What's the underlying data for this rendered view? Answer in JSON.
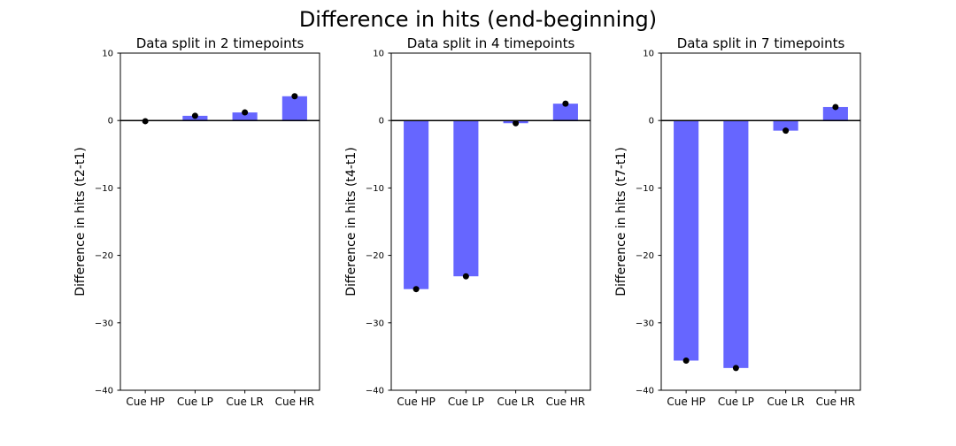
{
  "figure": {
    "title": "Difference in hits (end-beginning)"
  },
  "colors": {
    "bar": "#6666ff",
    "point": "#000000",
    "zero_line": "#000000",
    "frame": "#000000"
  },
  "chart_data": [
    {
      "type": "bar",
      "title": "Data split in 2 timepoints",
      "xlabel": "",
      "ylabel": "Difference in hits (t2-t1)",
      "categories": [
        "Cue HP",
        "Cue LP",
        "Cue LR",
        "Cue HR"
      ],
      "values": [
        -0.1,
        0.7,
        1.2,
        3.6
      ],
      "points": [
        -0.1,
        0.7,
        1.2,
        3.6
      ],
      "ylim": [
        -40,
        10
      ],
      "yticks": [
        -40,
        -30,
        -20,
        -10,
        0,
        10
      ],
      "ytick_labels": [
        "−40",
        "−30",
        "−20",
        "−10",
        "0",
        "10"
      ],
      "zero_line": true,
      "grid": false
    },
    {
      "type": "bar",
      "title": "Data split in 4 timepoints",
      "xlabel": "",
      "ylabel": "Difference in hits (t4-t1)",
      "categories": [
        "Cue HP",
        "Cue LP",
        "Cue LR",
        "Cue HR"
      ],
      "values": [
        -25.0,
        -23.1,
        -0.4,
        2.5
      ],
      "points": [
        -25.0,
        -23.1,
        -0.4,
        2.5
      ],
      "ylim": [
        -40,
        10
      ],
      "yticks": [
        -40,
        -30,
        -20,
        -10,
        0,
        10
      ],
      "ytick_labels": [
        "−40",
        "−30",
        "−20",
        "−10",
        "0",
        "10"
      ],
      "zero_line": true,
      "grid": false
    },
    {
      "type": "bar",
      "title": "Data split in 7 timepoints",
      "xlabel": "",
      "ylabel": "Difference in hits (t7-t1)",
      "categories": [
        "Cue HP",
        "Cue LP",
        "Cue LR",
        "Cue HR"
      ],
      "values": [
        -35.6,
        -36.7,
        -1.5,
        2.0
      ],
      "points": [
        -35.6,
        -36.7,
        -1.5,
        2.0
      ],
      "ylim": [
        -40,
        10
      ],
      "yticks": [
        -40,
        -30,
        -20,
        -10,
        0,
        10
      ],
      "ytick_labels": [
        "−40",
        "−30",
        "−20",
        "−10",
        "0",
        "10"
      ],
      "zero_line": true,
      "grid": false
    }
  ]
}
